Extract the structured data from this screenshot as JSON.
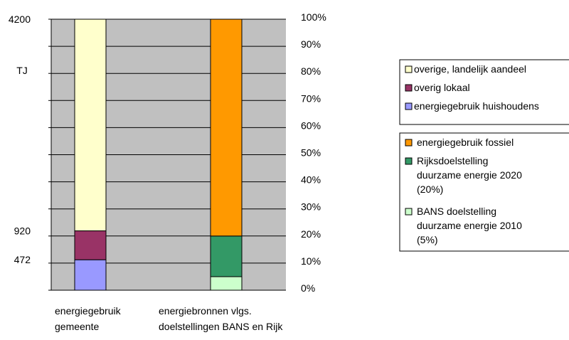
{
  "chart_data": {
    "type": "bar",
    "stacked": true,
    "grid": true,
    "plot_background": "#c0c0c0",
    "categories": [
      "energiegebruik gemeente",
      "energiebronnen vlgs. doelstellingen BANS en Rijk"
    ],
    "category_labels": [
      [
        "energiegebruik",
        "gemeente"
      ],
      [
        "energiebronnen vlgs.",
        "doelstellingen BANS en Rijk"
      ]
    ],
    "left_axis": {
      "unit_label": "TJ",
      "max": 4200,
      "ticks": [
        4200,
        920,
        472
      ]
    },
    "right_axis": {
      "ticks": [
        "100%",
        "90%",
        "80%",
        "70%",
        "60%",
        "50%",
        "40%",
        "30%",
        "20%",
        "10%",
        "0%"
      ],
      "ylim": [
        0,
        100
      ]
    },
    "series": [
      {
        "name": "energiegebruik huishoudens",
        "category": 0,
        "from": 0,
        "to": 472,
        "unit": "TJ",
        "color": "#9999ff"
      },
      {
        "name": "overig lokaal",
        "category": 0,
        "from": 472,
        "to": 920,
        "unit": "TJ",
        "color": "#993366"
      },
      {
        "name": "overige, landelijk aandeel",
        "category": 0,
        "from": 920,
        "to": 4200,
        "unit": "TJ",
        "color": "#ffffcc"
      },
      {
        "name": "BANS doelstelling duurzame energie 2010 (5%)",
        "category": 1,
        "from": 0,
        "to": 5,
        "unit": "%",
        "color": "#ccffcc"
      },
      {
        "name": "Rijksdoelstelling duurzame energie 2020 (20%)",
        "category": 1,
        "from": 5,
        "to": 20,
        "unit": "%",
        "color": "#339966"
      },
      {
        "name": "energiegebruik fossiel",
        "category": 1,
        "from": 20,
        "to": 100,
        "unit": "%",
        "color": "#ff9900"
      }
    ],
    "legends": [
      {
        "placement": "right",
        "entries": [
          {
            "lines": [
              "overige, landelijk aandeel"
            ],
            "color": "#ffffcc"
          },
          {
            "lines": [
              "overig lokaal"
            ],
            "color": "#993366"
          },
          {
            "lines": [
              "energiegebruik huishoudens"
            ],
            "color": "#9999ff"
          }
        ]
      },
      {
        "placement": "right",
        "entries": [
          {
            "lines": [
              "energiegebruik fossiel"
            ],
            "color": "#ff9900"
          },
          {
            "lines": [
              "Rijksdoelstelling",
              "duurzame energie 2020",
              "(20%)"
            ],
            "color": "#339966"
          },
          {
            "lines": [
              "BANS doelstelling",
              "duurzame energie 2010",
              "(5%)"
            ],
            "color": "#ccffcc"
          }
        ]
      }
    ]
  }
}
